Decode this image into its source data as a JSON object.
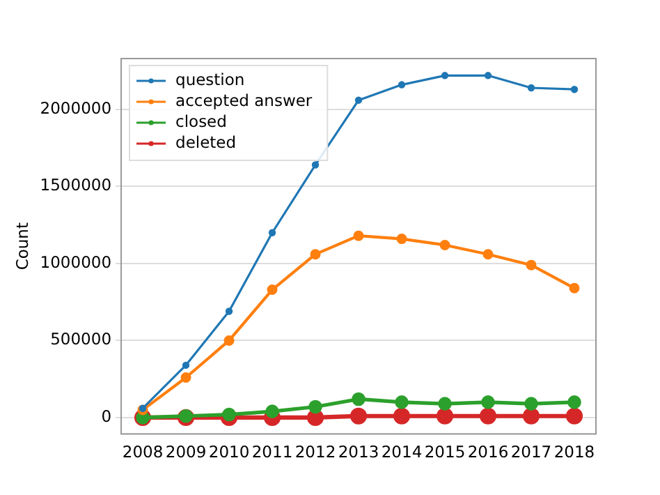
{
  "chart_data": {
    "type": "line",
    "ylabel": "Count",
    "categories": [
      "2008",
      "2009",
      "2010",
      "2011",
      "2012",
      "2013",
      "2014",
      "2015",
      "2016",
      "2017",
      "2018"
    ],
    "series": [
      {
        "name": "question",
        "color": "#1f77b4",
        "values": [
          60000,
          340000,
          690000,
          1200000,
          1640000,
          2060000,
          2160000,
          2220000,
          2220000,
          2140000,
          2130000
        ]
      },
      {
        "name": "accepted answer",
        "color": "#ff7f0e",
        "values": [
          50000,
          260000,
          500000,
          830000,
          1060000,
          1180000,
          1160000,
          1120000,
          1060000,
          990000,
          840000
        ]
      },
      {
        "name": "closed",
        "color": "#2ca02c",
        "values": [
          0,
          10000,
          20000,
          40000,
          70000,
          120000,
          100000,
          90000,
          100000,
          90000,
          100000
        ]
      },
      {
        "name": "deleted",
        "color": "#d62728",
        "values": [
          0,
          0,
          0,
          0,
          0,
          10000,
          10000,
          10000,
          10000,
          10000,
          10000
        ]
      }
    ],
    "ylim": [
      -106000,
      2330000
    ],
    "yticks": [
      0,
      500000,
      1000000,
      1500000,
      2000000
    ],
    "grid": "y",
    "legend": "top left",
    "marker": "circle",
    "line_style": "solid"
  }
}
